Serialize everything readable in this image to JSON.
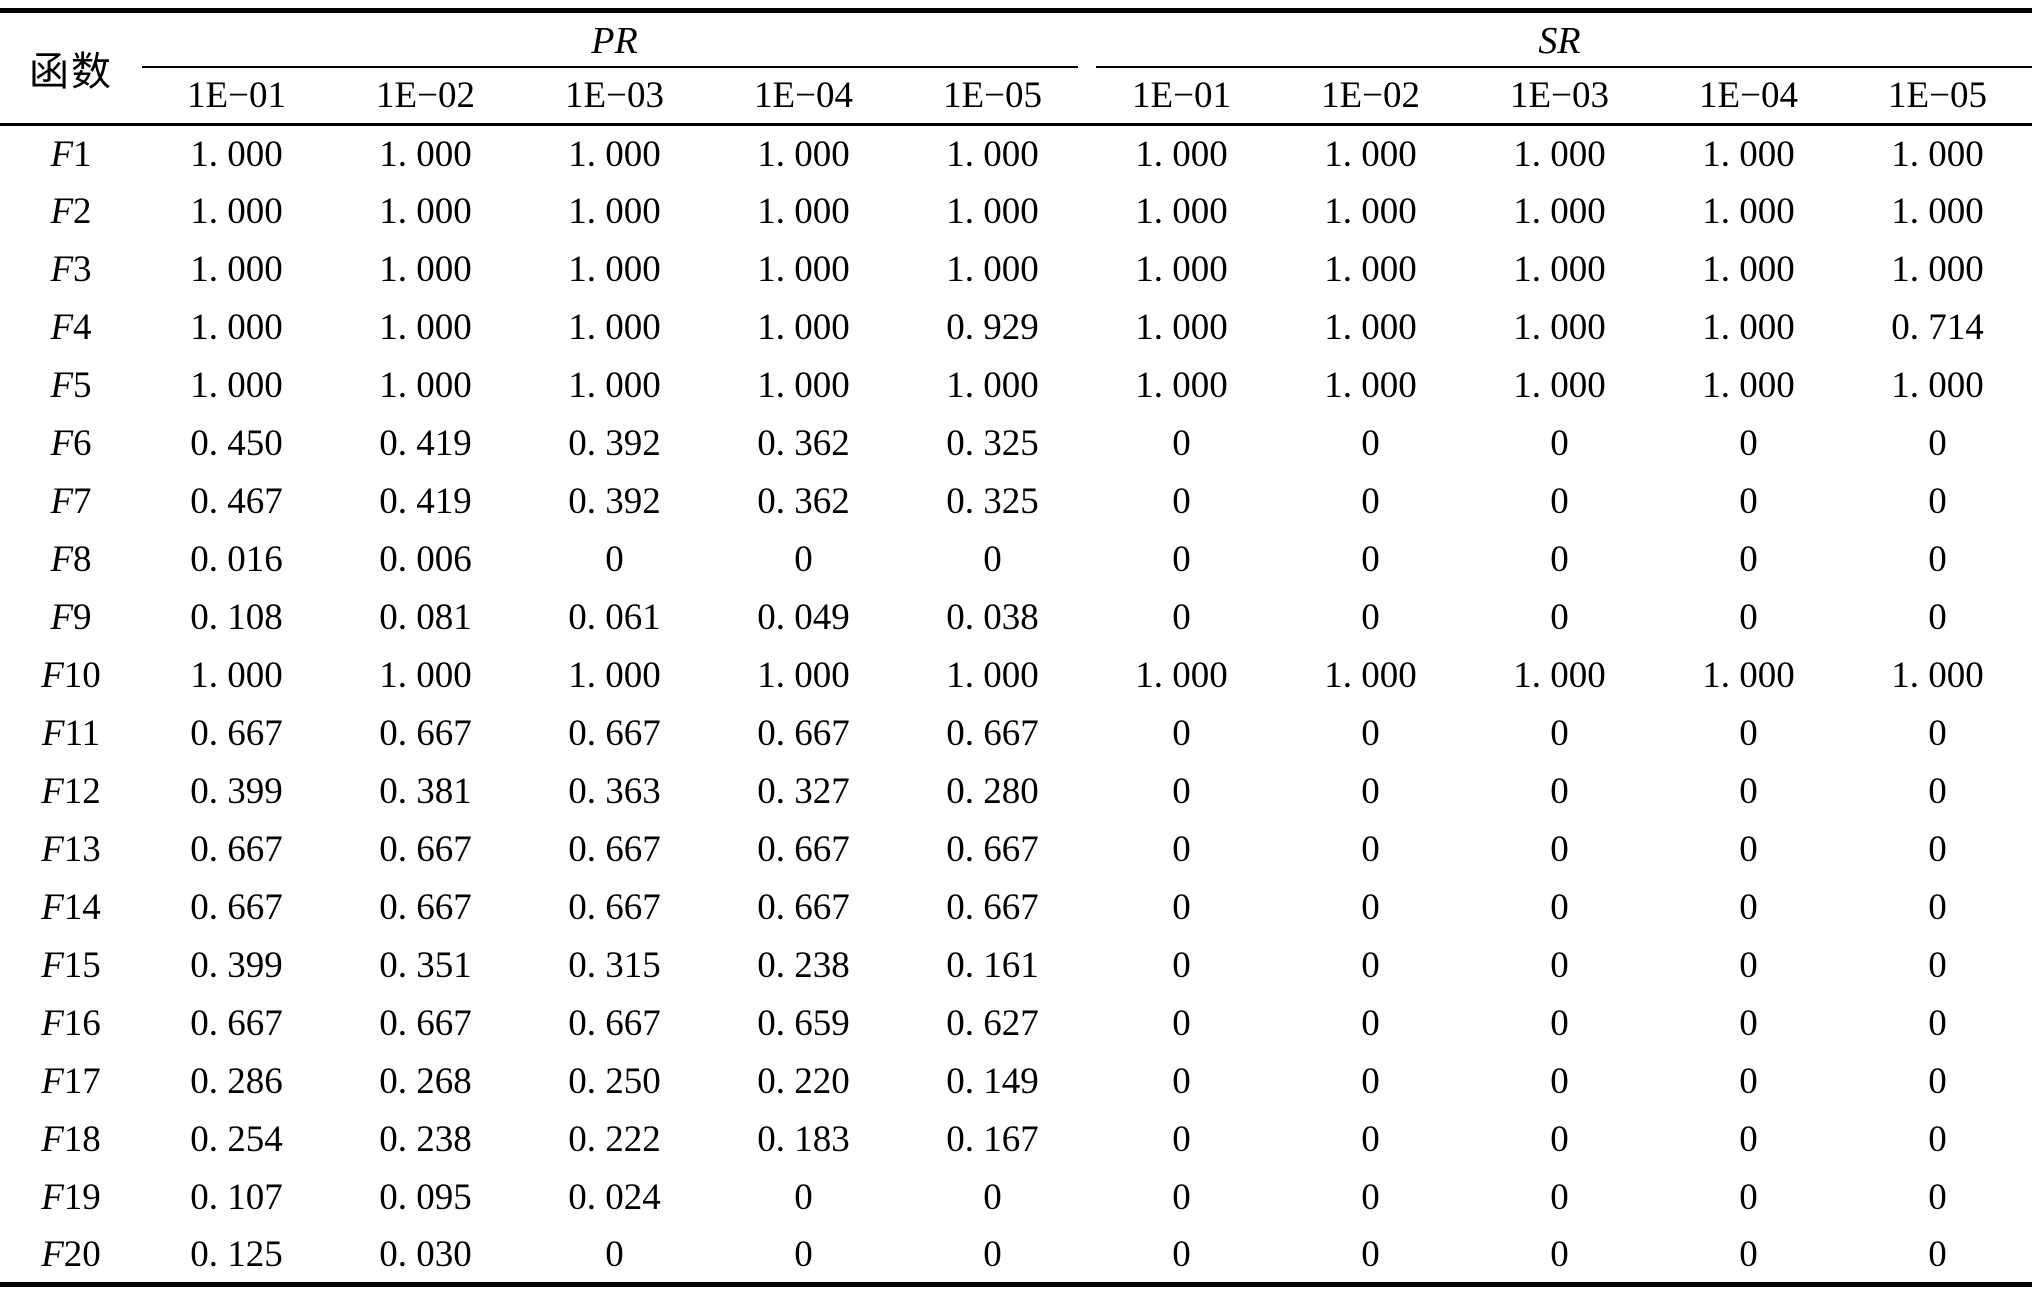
{
  "table": {
    "row_header_label": "函数",
    "group_headers": [
      {
        "label": "PR"
      },
      {
        "label": "SR"
      }
    ],
    "sub_headers": [
      "1E−01",
      "1E−02",
      "1E−03",
      "1E−04",
      "1E−05",
      "1E−01",
      "1E−02",
      "1E−03",
      "1E−04",
      "1E−05"
    ]
  },
  "chart_data": {
    "type": "table",
    "row_header": "函数",
    "column_groups": [
      {
        "name": "PR",
        "tolerances": [
          "1E−01",
          "1E−02",
          "1E−03",
          "1E−04",
          "1E−05"
        ]
      },
      {
        "name": "SR",
        "tolerances": [
          "1E−01",
          "1E−02",
          "1E−03",
          "1E−04",
          "1E−05"
        ]
      }
    ],
    "rows": [
      {
        "function": "F1",
        "PR": [
          1.0,
          1.0,
          1.0,
          1.0,
          1.0
        ],
        "SR": [
          1.0,
          1.0,
          1.0,
          1.0,
          1.0
        ]
      },
      {
        "function": "F2",
        "PR": [
          1.0,
          1.0,
          1.0,
          1.0,
          1.0
        ],
        "SR": [
          1.0,
          1.0,
          1.0,
          1.0,
          1.0
        ]
      },
      {
        "function": "F3",
        "PR": [
          1.0,
          1.0,
          1.0,
          1.0,
          1.0
        ],
        "SR": [
          1.0,
          1.0,
          1.0,
          1.0,
          1.0
        ]
      },
      {
        "function": "F4",
        "PR": [
          1.0,
          1.0,
          1.0,
          1.0,
          0.929
        ],
        "SR": [
          1.0,
          1.0,
          1.0,
          1.0,
          0.714
        ]
      },
      {
        "function": "F5",
        "PR": [
          1.0,
          1.0,
          1.0,
          1.0,
          1.0
        ],
        "SR": [
          1.0,
          1.0,
          1.0,
          1.0,
          1.0
        ]
      },
      {
        "function": "F6",
        "PR": [
          0.45,
          0.419,
          0.392,
          0.362,
          0.325
        ],
        "SR": [
          0,
          0,
          0,
          0,
          0
        ]
      },
      {
        "function": "F7",
        "PR": [
          0.467,
          0.419,
          0.392,
          0.362,
          0.325
        ],
        "SR": [
          0,
          0,
          0,
          0,
          0
        ]
      },
      {
        "function": "F8",
        "PR": [
          0.016,
          0.006,
          0,
          0,
          0
        ],
        "SR": [
          0,
          0,
          0,
          0,
          0
        ]
      },
      {
        "function": "F9",
        "PR": [
          0.108,
          0.081,
          0.061,
          0.049,
          0.038
        ],
        "SR": [
          0,
          0,
          0,
          0,
          0
        ]
      },
      {
        "function": "F10",
        "PR": [
          1.0,
          1.0,
          1.0,
          1.0,
          1.0
        ],
        "SR": [
          1.0,
          1.0,
          1.0,
          1.0,
          1.0
        ]
      },
      {
        "function": "F11",
        "PR": [
          0.667,
          0.667,
          0.667,
          0.667,
          0.667
        ],
        "SR": [
          0,
          0,
          0,
          0,
          0
        ]
      },
      {
        "function": "F12",
        "PR": [
          0.399,
          0.381,
          0.363,
          0.327,
          0.28
        ],
        "SR": [
          0,
          0,
          0,
          0,
          0
        ]
      },
      {
        "function": "F13",
        "PR": [
          0.667,
          0.667,
          0.667,
          0.667,
          0.667
        ],
        "SR": [
          0,
          0,
          0,
          0,
          0
        ]
      },
      {
        "function": "F14",
        "PR": [
          0.667,
          0.667,
          0.667,
          0.667,
          0.667
        ],
        "SR": [
          0,
          0,
          0,
          0,
          0
        ]
      },
      {
        "function": "F15",
        "PR": [
          0.399,
          0.351,
          0.315,
          0.238,
          0.161
        ],
        "SR": [
          0,
          0,
          0,
          0,
          0
        ]
      },
      {
        "function": "F16",
        "PR": [
          0.667,
          0.667,
          0.667,
          0.659,
          0.627
        ],
        "SR": [
          0,
          0,
          0,
          0,
          0
        ]
      },
      {
        "function": "F17",
        "PR": [
          0.286,
          0.268,
          0.25,
          0.22,
          0.149
        ],
        "SR": [
          0,
          0,
          0,
          0,
          0
        ]
      },
      {
        "function": "F18",
        "PR": [
          0.254,
          0.238,
          0.222,
          0.183,
          0.167
        ],
        "SR": [
          0,
          0,
          0,
          0,
          0
        ]
      },
      {
        "function": "F19",
        "PR": [
          0.107,
          0.095,
          0.024,
          0,
          0
        ],
        "SR": [
          0,
          0,
          0,
          0,
          0
        ]
      },
      {
        "function": "F20",
        "PR": [
          0.125,
          0.03,
          0,
          0,
          0
        ],
        "SR": [
          0,
          0,
          0,
          0,
          0
        ]
      }
    ]
  }
}
